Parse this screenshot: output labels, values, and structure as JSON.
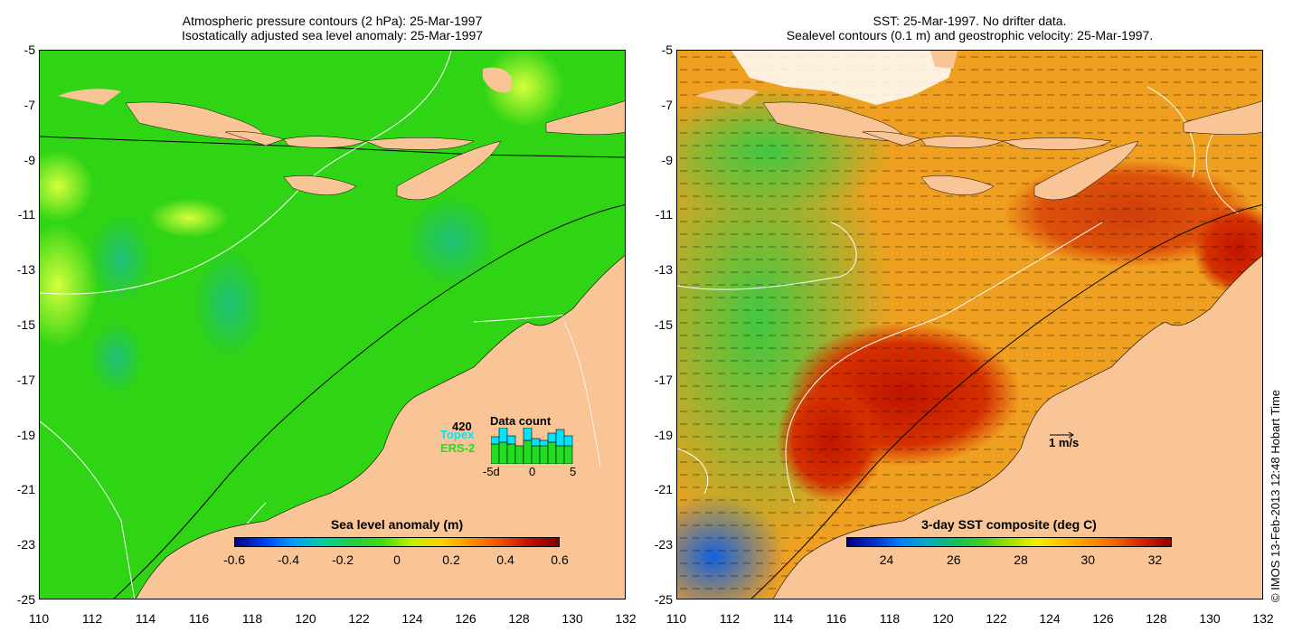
{
  "left_panel": {
    "title_line1": "Atmospheric pressure contours (2 hPa): 25-Mar-1997",
    "title_line2": "Isostatically adjusted sea level anomaly: 25-Mar-1997",
    "y_ticks": [
      "-5",
      "-7",
      "-9",
      "-11",
      "-13",
      "-15",
      "-17",
      "-19",
      "-21",
      "-23",
      "-25"
    ],
    "x_ticks": [
      "110",
      "112",
      "114",
      "116",
      "118",
      "120",
      "122",
      "124",
      "126",
      "128",
      "130",
      "132"
    ],
    "colorbar_label": "Sea level anomaly (m)",
    "colorbar_ticks": [
      "-0.6",
      "-0.4",
      "-0.2",
      "0",
      "0.2",
      "0.4",
      "0.6"
    ],
    "colorbar_range": [
      -0.6,
      0.6
    ],
    "data_count": {
      "title": "Data count",
      "max_label": "420",
      "topex_label": "Topex",
      "ers2_label": "ERS-2",
      "axis_labels": [
        "-5d",
        "0",
        "5"
      ],
      "topex_color": "#00e5ff",
      "ers2_color": "#22dd22"
    }
  },
  "right_panel": {
    "title_line1": "SST: 25-Mar-1997. No drifter data.",
    "title_line2": "Sealevel contours (0.1 m) and geostrophic velocity: 25-Mar-1997.",
    "y_ticks": [
      "-5",
      "-7",
      "-9",
      "-11",
      "-13",
      "-15",
      "-17",
      "-19",
      "-21",
      "-23",
      "-25"
    ],
    "x_ticks": [
      "110",
      "112",
      "114",
      "116",
      "118",
      "120",
      "122",
      "124",
      "126",
      "128",
      "130",
      "132"
    ],
    "colorbar_label": "3-day SST composite (deg C)",
    "colorbar_ticks": [
      "24",
      "26",
      "28",
      "30",
      "32"
    ],
    "colorbar_range": [
      22.8,
      32.5
    ],
    "scale_label": "1 m/s"
  },
  "copyright": "© IMOS 13-Feb-2013 12:48 Hobart Time",
  "colors": {
    "land": "#f9c597",
    "sla_background": "#2fd414",
    "sst_background": "#f0a020"
  }
}
